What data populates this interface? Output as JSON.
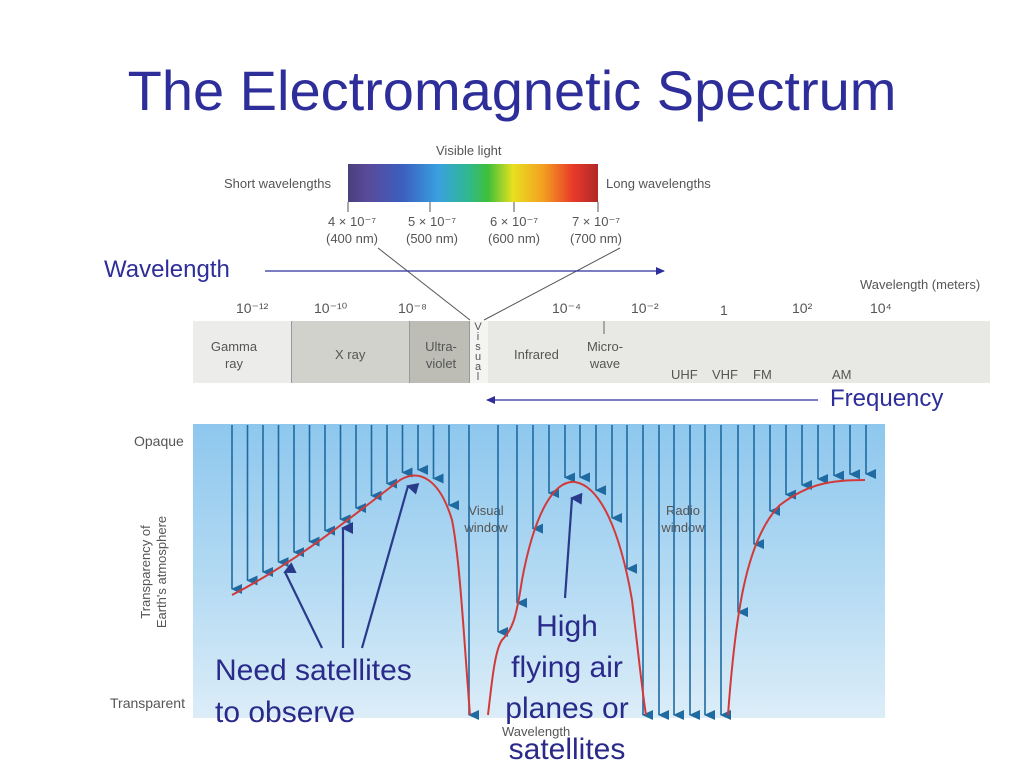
{
  "title": "The Electromagnetic Spectrum",
  "visible": {
    "label": "Visible light",
    "short": "Short wavelengths",
    "long": "Long wavelengths",
    "ticks": [
      {
        "value": "4 × 10⁻⁷",
        "nm": "(400 nm)"
      },
      {
        "value": "5 × 10⁻⁷",
        "nm": "(500 nm)"
      },
      {
        "value": "6 × 10⁻⁷",
        "nm": "(600 nm)"
      },
      {
        "value": "7 × 10⁻⁷",
        "nm": "(700 nm)"
      }
    ]
  },
  "wavelength_label": "Wavelength",
  "frequency_label": "Frequency",
  "axis": {
    "unit": "Wavelength (meters)",
    "ticks": [
      "10⁻¹²",
      "10⁻¹⁰",
      "10⁻⁸",
      "10⁻⁴",
      "10⁻²",
      "1",
      "10²",
      "10⁴"
    ]
  },
  "bands": {
    "gamma": [
      "Gamma",
      "ray"
    ],
    "xray": "X ray",
    "uv": [
      "Ultra-",
      "violet"
    ],
    "visual": [
      "V",
      "i",
      "s",
      "u",
      "a",
      "l"
    ],
    "ir": "Infrared",
    "micro": [
      "Micro-",
      "wave"
    ],
    "uhf": "UHF",
    "vhf": "VHF",
    "fm": "FM",
    "am": "AM"
  },
  "atmosphere": {
    "opaque": "Opaque",
    "transparent": "Transparent",
    "yaxis": [
      "Transparency of",
      "Earth's atmosphere"
    ],
    "visual_window": [
      "Visual",
      "window"
    ],
    "radio_window": [
      "Radio",
      "window"
    ],
    "xlabel": "Wavelength"
  },
  "annotations": {
    "satellites": [
      "Need satellites",
      "to observe"
    ],
    "airplanes": [
      "High",
      "flying air",
      "planes or",
      "satellites"
    ]
  },
  "colors": {
    "title": "#2e2e9a",
    "curve": "#d23a3a",
    "arrows": "#1f6aa0",
    "annotation_arrow": "#2a3a8a"
  }
}
